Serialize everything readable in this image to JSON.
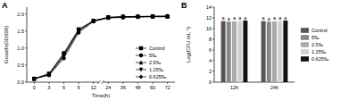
{
  "chart_data": [
    {
      "type": "line",
      "panel": "A",
      "x_label": "Time(h)",
      "y_label": "Growth(OD600)",
      "categories": [
        "0",
        "3",
        "6",
        "9",
        "12",
        "24",
        "36",
        "48",
        "60",
        "72"
      ],
      "ylim": [
        0,
        2.2
      ],
      "yticks": [
        {
          "value": 0,
          "label": "0.0"
        },
        {
          "value": 0.5,
          "label": "0.5"
        },
        {
          "value": 1,
          "label": "1.0"
        },
        {
          "value": 1.5,
          "label": "1.5"
        },
        {
          "value": 2,
          "label": "2.0"
        }
      ],
      "legend": "lower right",
      "series": [
        {
          "name": "Control",
          "color": "#000000",
          "marker": "square",
          "values": [
            0.1,
            0.25,
            0.85,
            1.55,
            1.8,
            1.9,
            1.92,
            1.92,
            1.93,
            1.93
          ]
        },
        {
          "name": "5‰",
          "color": "#000000",
          "marker": "circle",
          "values": [
            0.1,
            0.2,
            0.7,
            1.45,
            1.78,
            1.88,
            1.9,
            1.91,
            1.92,
            1.92
          ]
        },
        {
          "name": "2.5‰",
          "color": "#000000",
          "marker": "triangle",
          "values": [
            0.1,
            0.22,
            0.75,
            1.5,
            1.8,
            1.89,
            1.91,
            1.92,
            1.92,
            1.92
          ]
        },
        {
          "name": "1.25‰",
          "color": "#000000",
          "marker": "triangle-down",
          "values": [
            0.1,
            0.23,
            0.8,
            1.52,
            1.79,
            1.9,
            1.91,
            1.92,
            1.93,
            1.93
          ]
        },
        {
          "name": "0.625‰",
          "color": "#000000",
          "marker": "diamond",
          "values": [
            0.1,
            0.24,
            0.82,
            1.53,
            1.8,
            1.9,
            1.92,
            1.93,
            1.93,
            1.94
          ]
        }
      ]
    },
    {
      "type": "bar",
      "panel": "B",
      "y_label": "Log(CFU mL⁻¹)",
      "categories": [
        "12h",
        "24h"
      ],
      "ylim": [
        0,
        14
      ],
      "yticks": [
        0,
        2,
        4,
        6,
        8,
        10,
        12,
        14
      ],
      "legend": "right",
      "series": [
        {
          "name": "Control",
          "color": "#555555",
          "values": [
            11.4,
            11.4
          ],
          "letters": [
            "a",
            "a"
          ]
        },
        {
          "name": "5‰",
          "color": "#888888",
          "values": [
            11.3,
            11.3
          ],
          "letters": [
            "a",
            "a"
          ]
        },
        {
          "name": "2.5‰",
          "color": "#aaaaaa",
          "values": [
            11.35,
            11.35
          ],
          "letters": [
            "a",
            "a"
          ]
        },
        {
          "name": "1.25‰",
          "color": "#d0d0d0",
          "values": [
            11.4,
            11.4
          ],
          "letters": [
            "a",
            "a"
          ]
        },
        {
          "name": "0.625‰",
          "color": "#111111",
          "values": [
            11.5,
            11.5
          ],
          "letters": [
            "a",
            "a"
          ]
        }
      ]
    }
  ]
}
